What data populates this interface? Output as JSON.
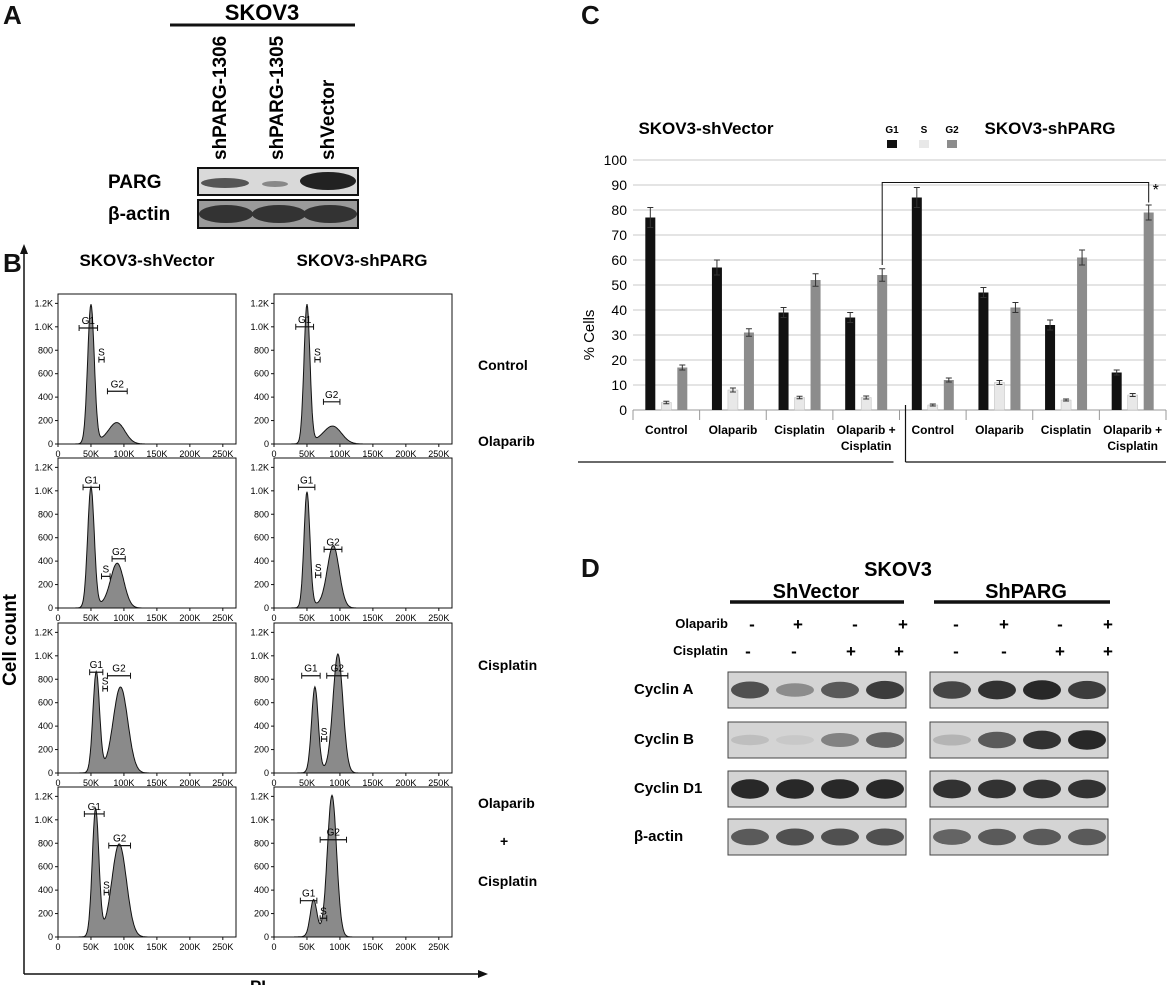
{
  "panels": {
    "a": "A",
    "b": "B",
    "c": "C",
    "d": "D"
  },
  "panel_a": {
    "title": "SKOV3",
    "lanes": [
      "shPARG-1306",
      "shPARG-1305",
      "shVector"
    ],
    "rows": [
      "PARG",
      "β-actin"
    ]
  },
  "panel_b": {
    "col_titles": [
      "SKOV3-shVector",
      "SKOV3-shPARG"
    ],
    "row_labels": [
      "Control",
      "Olaparib",
      "Olaparib\n+\nCisplatin"
    ],
    "treatments": [
      "Control",
      "Olaparib",
      "Cisplatin",
      "Olaparib",
      "+",
      "Cisplatin"
    ],
    "y_axis_title": "Cell count",
    "x_axis_title": "PI",
    "y_ticks": [
      "0",
      "200",
      "400",
      "600",
      "800",
      "1.0K",
      "1.2K"
    ],
    "x_ticks": [
      "0",
      "50K",
      "100K",
      "150K",
      "200K",
      "250K"
    ],
    "gates": [
      "G1",
      "S",
      "G2"
    ]
  },
  "panel_d": {
    "title": "SKOV3",
    "groups": [
      "ShVector",
      "ShPARG"
    ],
    "treat_rows": [
      {
        "label": "Olaparib",
        "signs": [
          "-",
          "+",
          "-",
          "+",
          "-",
          "+",
          "-",
          "+"
        ]
      },
      {
        "label": "Cisplatin",
        "signs": [
          "-",
          "-",
          "+",
          "+",
          "-",
          "-",
          "+",
          "+"
        ]
      }
    ],
    "blots": [
      "Cyclin A",
      "Cyclin B",
      "Cyclin D1",
      "β-actin"
    ]
  },
  "chart_data": {
    "type": "bar",
    "title_left": "SKOV3-shVector",
    "title_right": "SKOV3-shPARG",
    "ylabel": "% Cells",
    "ylim": [
      0,
      100
    ],
    "yticks": [
      0,
      10,
      20,
      30,
      40,
      50,
      60,
      70,
      80,
      90,
      100
    ],
    "categories": [
      "Control",
      "Olaparib",
      "Cisplatin",
      "Olaparib +\nCisplatin",
      "Control",
      "Olaparib",
      "Cisplatin",
      "Olaparib +\nCisplatin"
    ],
    "series": [
      {
        "name": "G1",
        "color": "#111111",
        "values": [
          77,
          57,
          39,
          37,
          85,
          47,
          34,
          15
        ],
        "errors": [
          4,
          3,
          2,
          2,
          4,
          2,
          2,
          1
        ]
      },
      {
        "name": "S",
        "color": "#e8e8e8",
        "values": [
          3,
          8,
          5,
          5,
          2,
          11,
          4,
          6
        ],
        "errors": [
          0.5,
          0.8,
          0.5,
          0.6,
          0.4,
          0.8,
          0.4,
          0.6
        ]
      },
      {
        "name": "G2",
        "color": "#8c8c8c",
        "values": [
          17,
          31,
          52,
          54,
          12,
          41,
          61,
          79
        ],
        "errors": [
          1,
          1.5,
          2.5,
          2.5,
          0.8,
          2,
          3,
          3
        ]
      }
    ],
    "significance": "*"
  },
  "colors": {
    "ink": "#111111",
    "histogram_fill": "#8a8a8a",
    "grid": "#c8c8c8"
  }
}
